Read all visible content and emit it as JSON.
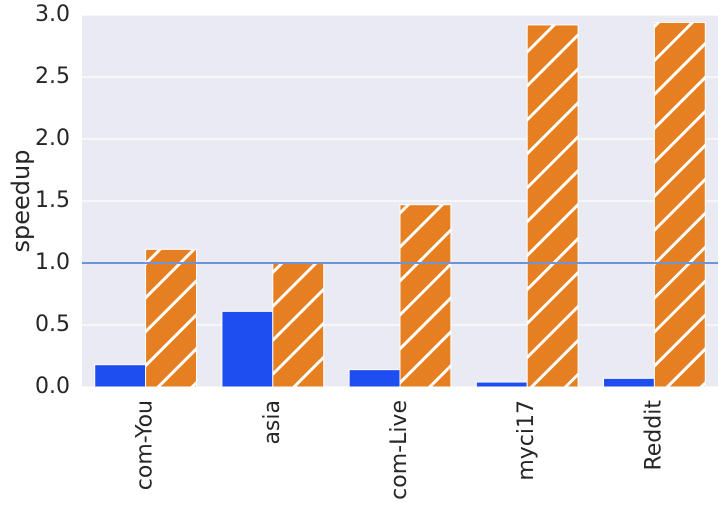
{
  "chart_data": {
    "type": "bar",
    "ylabel": "speedup",
    "categories": [
      "com-You",
      "asia",
      "com-Live",
      "myci17",
      "Reddit"
    ],
    "series": [
      {
        "color": "#1f4ef0",
        "values": [
          0.18,
          0.61,
          0.14,
          0.04,
          0.07
        ]
      },
      {
        "color": "#e67e22",
        "hatch": "/",
        "values": [
          1.11,
          1.0,
          1.47,
          2.92,
          2.94
        ]
      }
    ],
    "ylim": [
      0,
      3.0
    ],
    "yticks": [
      {
        "value": 0,
        "label": "0.0"
      },
      {
        "value": 0.5,
        "label": "0.5"
      },
      {
        "value": 1,
        "label": "1.0"
      },
      {
        "value": 1.5,
        "label": "1.5"
      },
      {
        "value": 2,
        "label": "2.0"
      },
      {
        "value": 2.5,
        "label": "2.5"
      },
      {
        "value": 3,
        "label": "3.0"
      }
    ],
    "hline": {
      "value": 1,
      "color": "#6f93d8"
    },
    "grid": true,
    "background": "#eaeaf2"
  }
}
